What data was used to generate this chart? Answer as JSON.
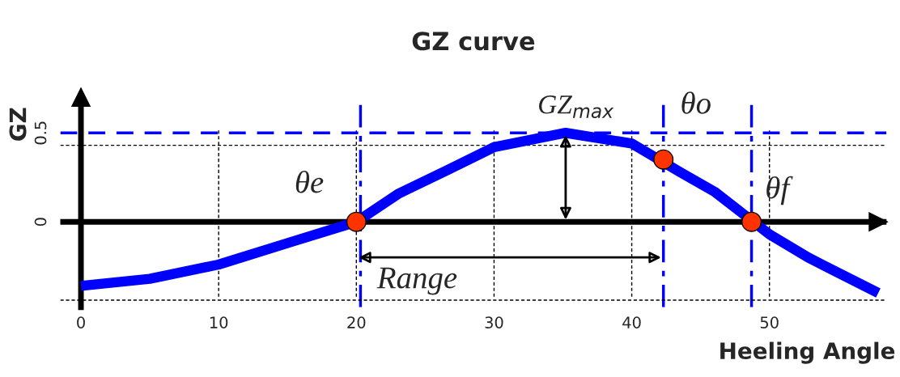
{
  "chart_data": {
    "type": "line",
    "title": "GZ curve",
    "xlabel": "Heeling Angle",
    "ylabel": "GZ",
    "xlim": [
      -1.5,
      58.5
    ],
    "ylim": [
      -0.48,
      0.7
    ],
    "xticks": [
      0,
      10,
      20,
      30,
      40,
      50
    ],
    "yticks": [
      0,
      0.5
    ],
    "grid": "x",
    "series": [
      {
        "color": "#0000ff",
        "x": [
          0,
          5,
          10,
          15.4,
          20,
          23.1,
          26.6,
          30,
          35.2,
          40,
          43.5,
          46,
          50,
          52.8,
          57.9
        ],
        "values": [
          -0.36,
          -0.32,
          -0.24,
          -0.11,
          0,
          0.16,
          0.29,
          0.42,
          0.5,
          0.44,
          0.28,
          0.17,
          -0.07,
          -0.2,
          -0.4
        ]
      },
      {
        "type": "scatter",
        "color": "#ff3300",
        "marker": "circle",
        "x": [
          20,
          42.3,
          48.7
        ],
        "values": [
          0,
          0.35,
          0
        ]
      }
    ],
    "ref_lines": [
      {
        "axis": "y",
        "value": 0,
        "color": "#000000",
        "line_style": "solid"
      },
      {
        "axis": "x",
        "value": 20.3,
        "color": "#0000ff",
        "line_style": "dashdot"
      },
      {
        "axis": "x",
        "value": 42.3,
        "color": "#0000ff",
        "line_style": "dashdot"
      },
      {
        "axis": "x",
        "value": 48.7,
        "color": "#0000ff",
        "line_style": "dashdot"
      },
      {
        "axis": "y",
        "value": 0.5,
        "color": "#0000ff",
        "line_style": "dashed"
      },
      {
        "axis": "y",
        "value": 0.43,
        "color": "#000000",
        "line_style": "dotted"
      },
      {
        "axis": "y",
        "value": -0.44,
        "color": "#000000",
        "line_style": "dotted"
      }
    ],
    "annotations": [
      {
        "text": "θe",
        "x": 20,
        "y": 0
      },
      {
        "text": "θo",
        "x": 42.3,
        "y": 0.35
      },
      {
        "text": "θf",
        "x": 48.7,
        "y": 0
      },
      {
        "text": "GZ$_{max}$",
        "x": 35.2,
        "y": 0.5
      },
      "Range"
    ]
  }
}
